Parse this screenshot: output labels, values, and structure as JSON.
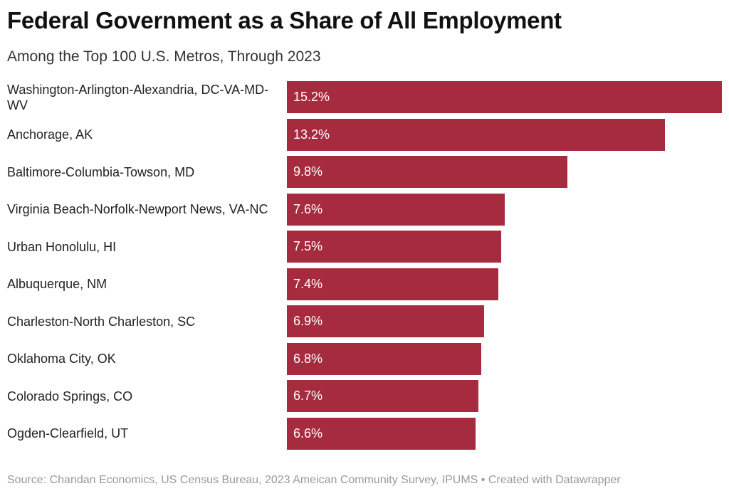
{
  "chart_data": {
    "type": "bar",
    "orientation": "horizontal",
    "title": "Federal Government as a Share of All Employment",
    "subtitle": "Among the Top 100 U.S. Metros, Through 2023",
    "categories": [
      "Washington-Arlington-Alexandria, DC-VA-MD-WV",
      "Anchorage, AK",
      "Baltimore-Columbia-Towson, MD",
      "Virginia Beach-Norfolk-Newport News, VA-NC",
      "Urban Honolulu, HI",
      "Albuquerque, NM",
      "Charleston-North Charleston, SC",
      "Oklahoma City, OK",
      "Colorado Springs, CO",
      "Ogden-Clearfield, UT"
    ],
    "values": [
      15.2,
      13.2,
      9.8,
      7.6,
      7.5,
      7.4,
      6.9,
      6.8,
      6.7,
      6.6
    ],
    "value_labels": [
      "15.2%",
      "13.2%",
      "9.8%",
      "7.6%",
      "7.5%",
      "7.4%",
      "6.9%",
      "6.8%",
      "6.7%",
      "6.6%"
    ],
    "color": "#a62b3f",
    "source": "Source: Chandan Economics, US Census Bureau, 2023 Ameican Community Survey, IPUMS • Created with Datawrapper"
  }
}
